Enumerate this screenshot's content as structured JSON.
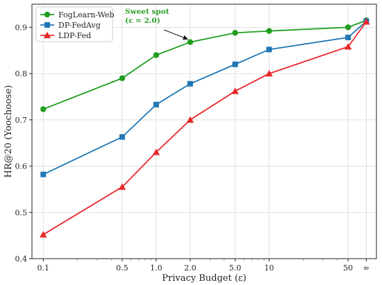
{
  "chart_data": {
    "type": "line",
    "xlabel": "Privacy Budget (ε)",
    "ylabel": "HR@20 (Yoochoose)",
    "x_tick_labels": [
      "0.1",
      "0.5",
      "1.0",
      "2.0",
      "5.0",
      "10",
      "50",
      "∞"
    ],
    "x_scale": "log",
    "ylim": [
      0.4,
      0.95
    ],
    "y_ticks": [
      0.4,
      0.5,
      0.6,
      0.7,
      0.8,
      0.9
    ],
    "grid": true,
    "legend_position": "top-left",
    "annotation": {
      "text_lines": [
        "Sweet spot",
        "(ε = 2.0)"
      ],
      "target_x": "2.0",
      "target_y": 0.868,
      "color": "#2ca02c"
    },
    "series": [
      {
        "name": "FogLearn-Web",
        "marker": "circle",
        "color": "#1f9e1f",
        "values": [
          0.723,
          0.79,
          0.84,
          0.868,
          0.888,
          0.892,
          0.9,
          0.915
        ]
      },
      {
        "name": "DP-FedAvg",
        "marker": "square",
        "color": "#1f77b4",
        "values": [
          0.582,
          0.663,
          0.733,
          0.778,
          0.82,
          0.852,
          0.878,
          0.913
        ]
      },
      {
        "name": "LDP-Fed",
        "marker": "triangle",
        "color": "#e8282b",
        "values": [
          0.452,
          0.555,
          0.63,
          0.7,
          0.762,
          0.8,
          0.858,
          0.912
        ]
      }
    ]
  }
}
